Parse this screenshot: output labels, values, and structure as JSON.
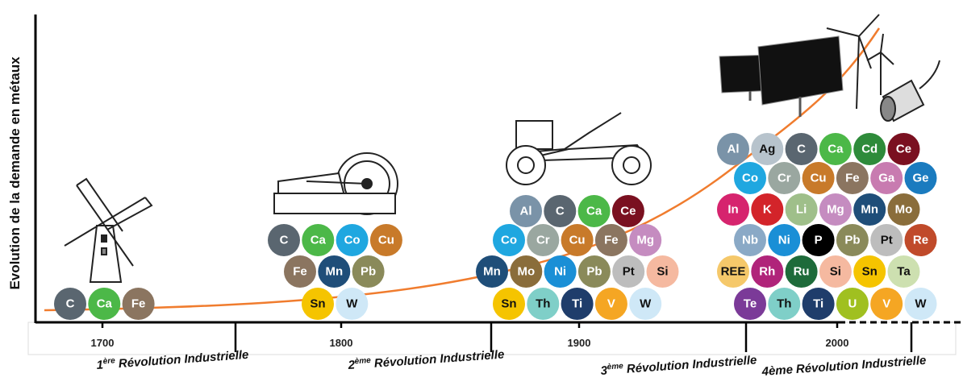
{
  "y_axis_label": "Evolution de la demande en métaux",
  "years": [
    "1700",
    "1800",
    "1900",
    "2000"
  ],
  "revolutions": [
    {
      "number": "1",
      "suffix": "ère",
      "name": "Révolution Industrielle"
    },
    {
      "number": "2",
      "suffix": "ème",
      "name": "Révolution Industrielle"
    },
    {
      "number": "3",
      "suffix": "ème",
      "name": "Révolution Industrielle"
    },
    {
      "number": "4ème",
      "name": "Révolution Industrielle"
    }
  ],
  "groups": [
    {
      "rows": [
        [
          {
            "symbol": "C",
            "color": "#5a6670"
          },
          {
            "symbol": "Ca",
            "color": "#4cb848"
          },
          {
            "symbol": "Fe",
            "color": "#8b7560"
          }
        ]
      ]
    },
    {
      "rows": [
        [
          {
            "symbol": "C",
            "color": "#5a6670"
          },
          {
            "symbol": "Ca",
            "color": "#4cb848"
          },
          {
            "symbol": "Co",
            "color": "#1fa7e0"
          },
          {
            "symbol": "Cu",
            "color": "#c87a2a"
          }
        ],
        [
          {
            "symbol": "Fe",
            "color": "#8b7560"
          },
          {
            "symbol": "Mn",
            "color": "#1f4e79"
          },
          {
            "symbol": "Pb",
            "color": "#8a8a5a"
          }
        ],
        [
          {
            "symbol": "Sn",
            "color": "#f5c400"
          },
          {
            "symbol": "W",
            "color": "#cfe8f7"
          }
        ]
      ]
    },
    {
      "rows": [
        [
          {
            "symbol": "Al",
            "color": "#7a93a8"
          },
          {
            "symbol": "C",
            "color": "#5a6670"
          },
          {
            "symbol": "Ca",
            "color": "#4cb848"
          },
          {
            "symbol": "Ce",
            "color": "#7a1020"
          }
        ],
        [
          {
            "symbol": "Co",
            "color": "#1fa7e0"
          },
          {
            "symbol": "Cr",
            "color": "#9aa7a0"
          },
          {
            "symbol": "Cu",
            "color": "#c87a2a"
          },
          {
            "symbol": "Fe",
            "color": "#8b7560"
          },
          {
            "symbol": "Mg",
            "color": "#c58cc0"
          }
        ],
        [
          {
            "symbol": "Mn",
            "color": "#1f4e79"
          },
          {
            "symbol": "Mo",
            "color": "#8a6d3b"
          },
          {
            "symbol": "Ni",
            "color": "#1a8fd6"
          },
          {
            "symbol": "Pb",
            "color": "#8a8a5a"
          },
          {
            "symbol": "Pt",
            "color": "#bdbdbd"
          },
          {
            "symbol": "Si",
            "color": "#f5b9a0"
          }
        ],
        [
          {
            "symbol": "Sn",
            "color": "#f5c400"
          },
          {
            "symbol": "Th",
            "color": "#7fcfc8"
          },
          {
            "symbol": "Ti",
            "color": "#1f3d6b"
          },
          {
            "symbol": "V",
            "color": "#f5a623"
          },
          {
            "symbol": "W",
            "color": "#cfe8f7"
          }
        ]
      ]
    },
    {
      "rows": [
        [
          {
            "symbol": "Al",
            "color": "#7a93a8"
          },
          {
            "symbol": "Ag",
            "color": "#b7c3cc"
          },
          {
            "symbol": "C",
            "color": "#5a6670"
          },
          {
            "symbol": "Ca",
            "color": "#4cb848"
          },
          {
            "symbol": "Cd",
            "color": "#2e8b3a"
          },
          {
            "symbol": "Ce",
            "color": "#7a1020"
          }
        ],
        [
          {
            "symbol": "Co",
            "color": "#1fa7e0"
          },
          {
            "symbol": "Cr",
            "color": "#9aa7a0"
          },
          {
            "symbol": "Cu",
            "color": "#c87a2a"
          },
          {
            "symbol": "Fe",
            "color": "#8b7560"
          },
          {
            "symbol": "Ga",
            "color": "#c87bb0"
          },
          {
            "symbol": "Ge",
            "color": "#1a7bbf"
          }
        ],
        [
          {
            "symbol": "In",
            "color": "#d6246e"
          },
          {
            "symbol": "K",
            "color": "#d3242a"
          },
          {
            "symbol": "Li",
            "color": "#9fbf8a"
          },
          {
            "symbol": "Mg",
            "color": "#c58cc0"
          },
          {
            "symbol": "Mn",
            "color": "#1f4e79"
          },
          {
            "symbol": "Mo",
            "color": "#8a6d3b"
          }
        ],
        [
          {
            "symbol": "Nb",
            "color": "#8aa9c6"
          },
          {
            "symbol": "Ni",
            "color": "#1a8fd6"
          },
          {
            "symbol": "P",
            "color": "#000000"
          },
          {
            "symbol": "Pb",
            "color": "#8a8a5a"
          },
          {
            "symbol": "Pt",
            "color": "#bdbdbd"
          },
          {
            "symbol": "Re",
            "color": "#c04a2a"
          }
        ],
        [
          {
            "symbol": "REE",
            "color": "#f5c86a"
          },
          {
            "symbol": "Rh",
            "color": "#b0247a"
          },
          {
            "symbol": "Ru",
            "color": "#1e6b3a"
          },
          {
            "symbol": "Si",
            "color": "#f5b9a0"
          },
          {
            "symbol": "Sn",
            "color": "#f5c400"
          },
          {
            "symbol": "Ta",
            "color": "#cde0b0"
          }
        ],
        [
          {
            "symbol": "Te",
            "color": "#7b3a98"
          },
          {
            "symbol": "Th",
            "color": "#7fcfc8"
          },
          {
            "symbol": "Ti",
            "color": "#1f3d6b"
          },
          {
            "symbol": "U",
            "color": "#a0c020"
          },
          {
            "symbol": "V",
            "color": "#f5a623"
          },
          {
            "symbol": "W",
            "color": "#cfe8f7"
          }
        ]
      ]
    }
  ]
}
